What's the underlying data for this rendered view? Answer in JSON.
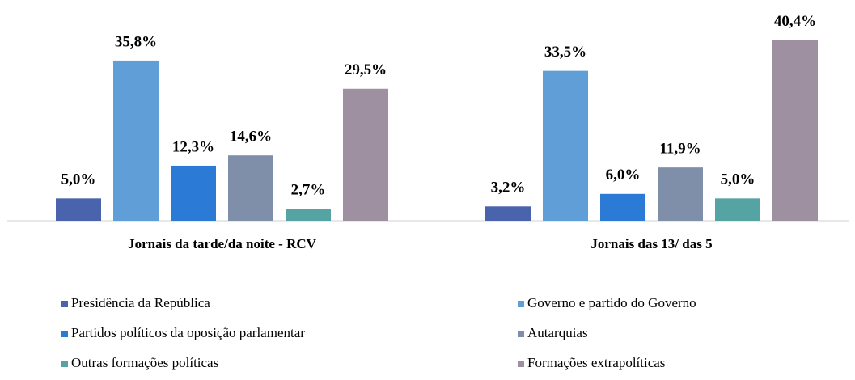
{
  "chart_data": {
    "type": "bar",
    "categories": [
      "Jornais da tarde/da noite - RCV",
      "Jornais das 13/ das 5"
    ],
    "ylim": [
      0,
      45
    ],
    "series": [
      {
        "name": "Presidência da República",
        "color": "#4a63ad",
        "values": [
          5.0,
          3.2
        ],
        "value_labels": [
          "5,0%",
          "3,2%"
        ]
      },
      {
        "name": "Governo e partido do Governo",
        "color": "#5f9ed6",
        "values": [
          35.8,
          33.5
        ],
        "value_labels": [
          "35,8%",
          "33,5%"
        ]
      },
      {
        "name": "Partidos políticos da oposição parlamentar",
        "color": "#2a7ad6",
        "values": [
          12.3,
          6.0
        ],
        "value_labels": [
          "12,3%",
          "6,0%"
        ]
      },
      {
        "name": "Autarquias",
        "color": "#7f8faa",
        "values": [
          14.6,
          11.9
        ],
        "value_labels": [
          "14,6%",
          "11,9%"
        ]
      },
      {
        "name": "Outras formações políticas",
        "color": "#56a3a3",
        "values": [
          2.7,
          5.0
        ],
        "value_labels": [
          "2,7%",
          "5,0%"
        ]
      },
      {
        "name": "Formações extrapolíticas",
        "color": "#9e90a0",
        "values": [
          29.5,
          40.4
        ],
        "value_labels": [
          "29,5%",
          "40,4%"
        ]
      }
    ]
  }
}
